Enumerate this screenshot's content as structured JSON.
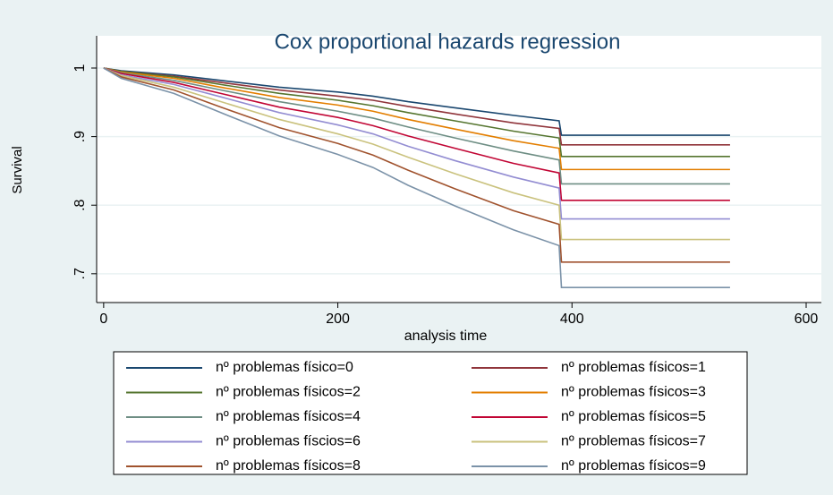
{
  "chart_data": {
    "type": "line",
    "title": "Cox proportional hazards regression",
    "x_label": "analysis time",
    "y_label": "Survival",
    "x": [
      0,
      15,
      60,
      100,
      150,
      200,
      230,
      260,
      300,
      350,
      389,
      391,
      535
    ],
    "xlim": [
      -6,
      613
    ],
    "xticks": [
      0,
      200,
      400,
      600
    ],
    "ylim": [
      0.658,
      1.047
    ],
    "yticks": [
      {
        "value": 0.7,
        "label": ".7"
      },
      {
        "value": 0.8,
        "label": ".8"
      },
      {
        "value": 0.9,
        "label": ".9"
      },
      1
    ],
    "grid": true,
    "series": [
      {
        "name": "nº problemas físico=0",
        "color": "#1a476f",
        "values": [
          1,
          0.996,
          0.99,
          0.982,
          0.972,
          0.965,
          0.959,
          0.951,
          0.942,
          0.931,
          0.923,
          0.902,
          0.902
        ]
      },
      {
        "name": "nº problemas físicos=1",
        "color": "#90353b",
        "values": [
          1,
          0.995,
          0.988,
          0.979,
          0.968,
          0.959,
          0.953,
          0.944,
          0.933,
          0.92,
          0.912,
          0.888,
          0.888
        ]
      },
      {
        "name": "nº problemas físicos=2",
        "color": "#55752f",
        "values": [
          1,
          0.995,
          0.987,
          0.976,
          0.963,
          0.953,
          0.945,
          0.935,
          0.923,
          0.908,
          0.898,
          0.871,
          0.871
        ]
      },
      {
        "name": "nº problemas físicos=3",
        "color": "#e37e00",
        "values": [
          1,
          0.994,
          0.985,
          0.972,
          0.957,
          0.946,
          0.937,
          0.925,
          0.911,
          0.894,
          0.883,
          0.852,
          0.852
        ]
      },
      {
        "name": "nº problemas físicos=4",
        "color": "#6e8e84",
        "values": [
          1,
          0.993,
          0.982,
          0.968,
          0.951,
          0.937,
          0.927,
          0.914,
          0.898,
          0.879,
          0.866,
          0.831,
          0.831
        ]
      },
      {
        "name": "nº problemas físicos=5",
        "color": "#c10534",
        "values": [
          1,
          0.992,
          0.979,
          0.963,
          0.943,
          0.928,
          0.916,
          0.901,
          0.883,
          0.861,
          0.847,
          0.807,
          0.807
        ]
      },
      {
        "name": "nº problemas físcios=6",
        "color": "#938dd2",
        "values": [
          1,
          0.99,
          0.976,
          0.958,
          0.935,
          0.917,
          0.904,
          0.886,
          0.865,
          0.841,
          0.825,
          0.78,
          0.78
        ]
      },
      {
        "name": "nº problemas físicos=7",
        "color": "#cac27e",
        "values": [
          1,
          0.989,
          0.972,
          0.951,
          0.925,
          0.904,
          0.889,
          0.87,
          0.846,
          0.818,
          0.8,
          0.75,
          0.75
        ]
      },
      {
        "name": "nº problemas físicos=8",
        "color": "#a0522d",
        "values": [
          1,
          0.987,
          0.968,
          0.943,
          0.913,
          0.89,
          0.873,
          0.851,
          0.824,
          0.792,
          0.772,
          0.717,
          0.717
        ]
      },
      {
        "name": "nº problemas físicos=9",
        "color": "#7b92a8",
        "values": [
          1,
          0.985,
          0.963,
          0.935,
          0.901,
          0.874,
          0.855,
          0.829,
          0.799,
          0.764,
          0.741,
          0.68,
          0.68
        ]
      }
    ]
  }
}
